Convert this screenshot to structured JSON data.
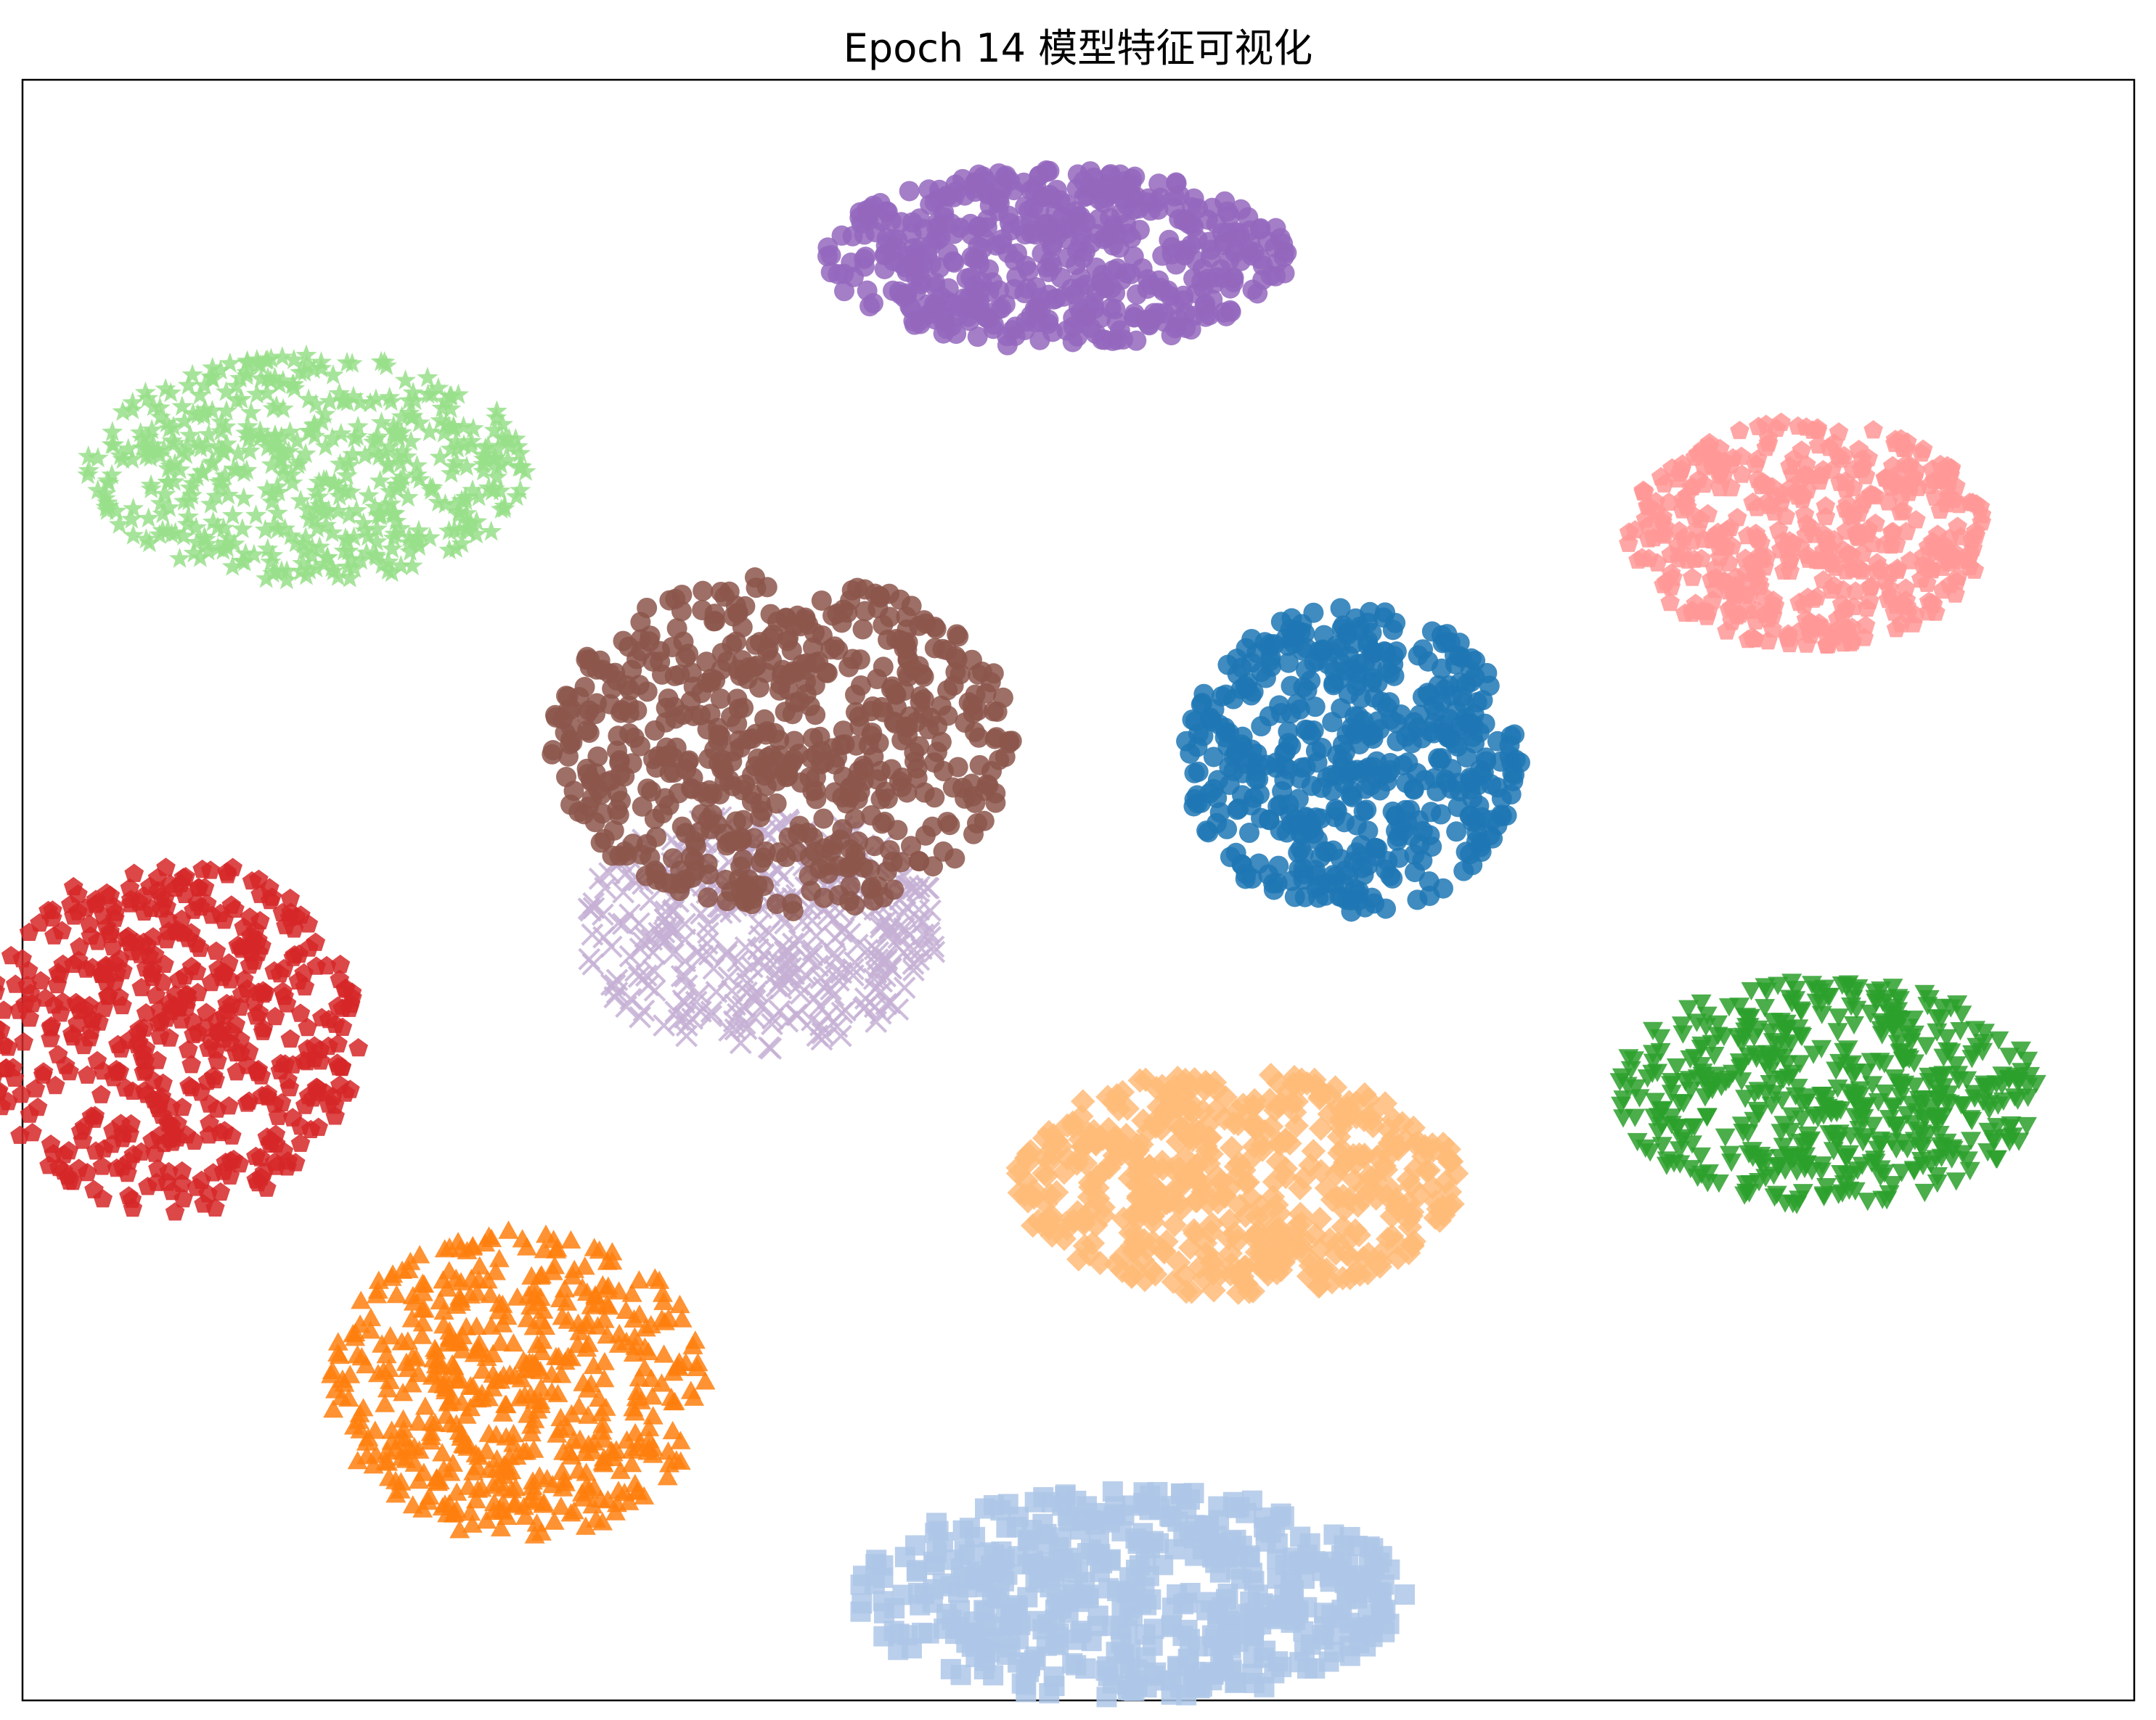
{
  "chart_data": {
    "type": "scatter",
    "title": "Epoch 14 模型特征可视化",
    "xlabel": "",
    "ylabel": "",
    "xlim": [
      -100,
      100
    ],
    "ylim": [
      -100,
      100
    ],
    "grid": false,
    "axis_ticks": false,
    "legend": "none",
    "clusters": [
      {
        "color": "#9467bd",
        "marker": "circle",
        "center": [
          -2,
          78
        ],
        "spread": [
          22,
          11
        ],
        "count": 520
      },
      {
        "color": "#98df8a",
        "marker": "star",
        "center": [
          -73,
          52
        ],
        "spread": [
          21,
          14
        ],
        "count": 520
      },
      {
        "color": "#ff9896",
        "marker": "pentagon",
        "center": [
          69,
          44
        ],
        "spread": [
          17,
          14
        ],
        "count": 460
      },
      {
        "color": "#c5b0d5",
        "marker": "x",
        "center": [
          -30,
          -5
        ],
        "spread": [
          17,
          15
        ],
        "count": 380
      },
      {
        "color": "#8c564b",
        "marker": "circle",
        "center": [
          -28,
          18
        ],
        "spread": [
          22,
          21
        ],
        "count": 620
      },
      {
        "color": "#1f77b4",
        "marker": "circle",
        "center": [
          26,
          16
        ],
        "spread": [
          16,
          19
        ],
        "count": 520
      },
      {
        "color": "#d62728",
        "marker": "pentagon",
        "center": [
          -86,
          -18
        ],
        "spread": [
          18,
          22
        ],
        "count": 520
      },
      {
        "color": "#ffbb78",
        "marker": "diamond",
        "center": [
          15,
          -36
        ],
        "spread": [
          21,
          14
        ],
        "count": 520
      },
      {
        "color": "#2ca02c",
        "marker": "triangle-down",
        "center": [
          71,
          -25
        ],
        "spread": [
          20,
          14
        ],
        "count": 520
      },
      {
        "color": "#ff7f0e",
        "marker": "triangle-up",
        "center": [
          -53,
          -61
        ],
        "spread": [
          18,
          19
        ],
        "count": 520
      },
      {
        "color": "#aec7e8",
        "marker": "square",
        "center": [
          5,
          -87
        ],
        "spread": [
          26,
          13
        ],
        "count": 520
      }
    ]
  }
}
